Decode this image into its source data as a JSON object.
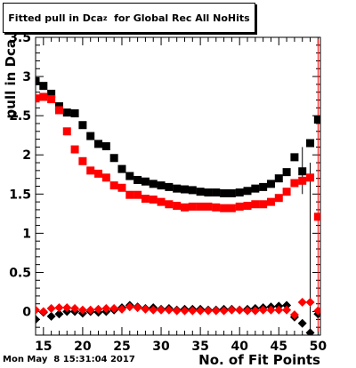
{
  "chart_data": {
    "type": "scatter",
    "title_main": "Fitted pull in Dca",
    "title_sub": "z",
    "title_rest": "  for Global Rec All NoHits",
    "xlabel": "No. of Fit Points",
    "ylabel": "pull in Dca",
    "xlim": [
      14,
      50.3
    ],
    "ylim": [
      -0.3,
      3.5
    ],
    "x_ticks": [
      "15",
      "20",
      "25",
      "30",
      "35",
      "40",
      "45",
      "50"
    ],
    "y_ticks": [
      "0",
      "0.5",
      "1",
      "1.5",
      "2",
      "2.5",
      "3",
      "3.5"
    ],
    "grid": false,
    "series": [
      {
        "marker": "square",
        "color": "#000000",
        "x": [
          14,
          15,
          16,
          17,
          18,
          19,
          20,
          21,
          22,
          23,
          24,
          25,
          26,
          27,
          28,
          29,
          30,
          31,
          32,
          33,
          34,
          35,
          36,
          37,
          38,
          39,
          40,
          41,
          42,
          43,
          44,
          45,
          46,
          47,
          48,
          49,
          50
        ],
        "y": [
          2.94,
          2.88,
          2.78,
          2.62,
          2.54,
          2.53,
          2.38,
          2.24,
          2.14,
          2.11,
          1.96,
          1.82,
          1.73,
          1.68,
          1.66,
          1.63,
          1.61,
          1.59,
          1.57,
          1.56,
          1.55,
          1.53,
          1.52,
          1.52,
          1.51,
          1.51,
          1.52,
          1.54,
          1.57,
          1.59,
          1.63,
          1.7,
          1.78,
          1.97,
          1.79,
          2.15,
          2.45
        ]
      },
      {
        "marker": "square",
        "color": "#ff0000",
        "x": [
          14,
          15,
          16,
          17,
          18,
          19,
          20,
          21,
          22,
          23,
          24,
          25,
          26,
          27,
          28,
          29,
          30,
          31,
          32,
          33,
          34,
          35,
          36,
          37,
          38,
          39,
          40,
          41,
          42,
          43,
          44,
          45,
          46,
          47,
          48,
          49,
          50
        ],
        "y": [
          2.72,
          2.74,
          2.71,
          2.57,
          2.3,
          2.07,
          1.92,
          1.8,
          1.76,
          1.71,
          1.61,
          1.58,
          1.49,
          1.49,
          1.44,
          1.43,
          1.4,
          1.37,
          1.35,
          1.33,
          1.34,
          1.34,
          1.34,
          1.33,
          1.32,
          1.32,
          1.34,
          1.35,
          1.37,
          1.37,
          1.4,
          1.45,
          1.53,
          1.64,
          1.67,
          1.71,
          1.21
        ]
      },
      {
        "marker": "diamond",
        "color": "#000000",
        "x": [
          14,
          15,
          16,
          17,
          18,
          19,
          20,
          21,
          22,
          23,
          24,
          25,
          26,
          27,
          28,
          29,
          30,
          31,
          32,
          33,
          34,
          35,
          36,
          37,
          38,
          39,
          40,
          41,
          42,
          43,
          44,
          45,
          46,
          47,
          48,
          49,
          50
        ],
        "y": [
          -0.1,
          -0.01,
          -0.06,
          -0.03,
          0.0,
          0.0,
          -0.02,
          0.0,
          -0.01,
          0.0,
          0.02,
          0.05,
          0.08,
          0.06,
          0.04,
          0.05,
          0.03,
          0.04,
          0.02,
          0.03,
          0.03,
          0.03,
          0.02,
          0.02,
          0.03,
          0.03,
          0.02,
          0.03,
          0.04,
          0.05,
          0.06,
          0.07,
          0.08,
          -0.07,
          -0.15,
          -0.27,
          -0.03
        ]
      },
      {
        "marker": "diamond",
        "color": "#ff0000",
        "x": [
          14,
          15,
          16,
          17,
          18,
          19,
          20,
          21,
          22,
          23,
          24,
          25,
          26,
          27,
          28,
          29,
          30,
          31,
          32,
          33,
          34,
          35,
          36,
          37,
          38,
          39,
          40,
          41,
          42,
          43,
          44,
          45,
          46,
          47,
          48,
          49,
          50
        ],
        "y": [
          0.02,
          0.0,
          0.04,
          0.05,
          0.05,
          0.04,
          0.02,
          0.02,
          0.03,
          0.04,
          0.04,
          0.03,
          0.06,
          0.05,
          0.03,
          0.02,
          0.02,
          0.02,
          0.01,
          0.01,
          0.01,
          0.01,
          0.01,
          0.01,
          0.01,
          0.02,
          0.02,
          0.01,
          0.01,
          0.02,
          0.02,
          0.02,
          0.02,
          -0.04,
          0.12,
          0.12,
          0.01
        ]
      }
    ]
  },
  "footer": {
    "timestamp": "Mon May  8 15:31:04 2017"
  }
}
